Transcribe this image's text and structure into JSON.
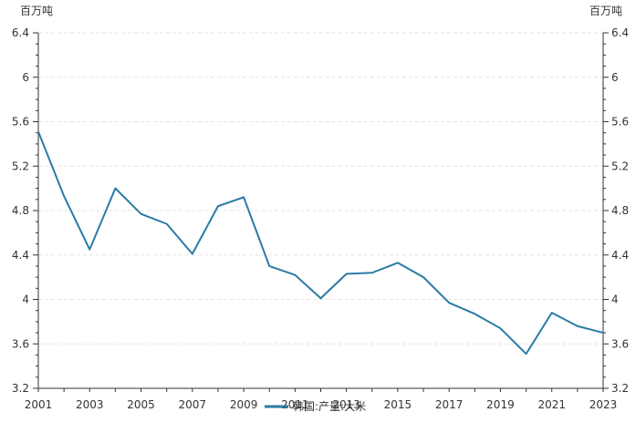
{
  "chart_data": {
    "type": "line",
    "x": [
      "2001",
      "2002",
      "2003",
      "2004",
      "2005",
      "2006",
      "2007",
      "2008",
      "2009",
      "2010",
      "2011",
      "2012",
      "2013",
      "2014",
      "2015",
      "2016",
      "2017",
      "2018",
      "2019",
      "2020",
      "2021",
      "2022",
      "2023"
    ],
    "x_tick_labels": [
      "2001",
      "2003",
      "2005",
      "2007",
      "2009",
      "2011",
      "2013",
      "2015",
      "2017",
      "2019",
      "2021",
      "2023"
    ],
    "series": [
      {
        "name": "韩国:产量:大米",
        "color": "#2a7ba5",
        "values": [
          5.51,
          4.93,
          4.45,
          5.0,
          4.77,
          4.68,
          4.41,
          4.84,
          4.92,
          4.3,
          4.22,
          4.01,
          4.23,
          4.24,
          4.33,
          4.2,
          3.97,
          3.87,
          3.74,
          3.51,
          3.88,
          3.76,
          3.7
        ]
      }
    ],
    "ylabel_left": "百万吨",
    "ylabel_right": "百万吨",
    "ylim": [
      3.2,
      6.4
    ],
    "y_ticks": [
      "3.2",
      "3.6",
      "4",
      "4.4",
      "4.8",
      "5.2",
      "5.6",
      "6",
      "6.4"
    ],
    "grid": true,
    "legend": "bottom-center"
  }
}
